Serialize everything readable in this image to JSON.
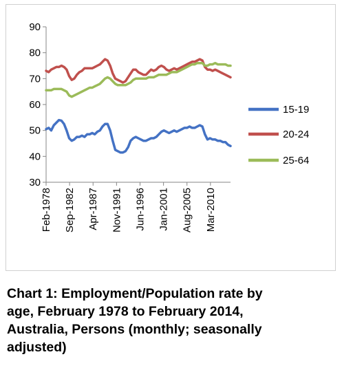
{
  "chart_data": {
    "type": "line",
    "title": "",
    "xlabel": "",
    "ylabel": "",
    "ylim": [
      30,
      90
    ],
    "yticks": [
      30,
      40,
      50,
      60,
      70,
      80,
      90
    ],
    "xlim": [
      "1978-02",
      "2014-02"
    ],
    "xtick_labels": [
      "Feb-1978",
      "Sep-1982",
      "Apr-1987",
      "Nov-1991",
      "Jun-1996",
      "Jan-2001",
      "Aug-2005",
      "Mar-2010"
    ],
    "xtick_dates": [
      "1978-02",
      "1982-09",
      "1987-04",
      "1991-11",
      "1996-06",
      "2001-01",
      "2005-08",
      "2010-03"
    ],
    "grid": false,
    "legend": "right",
    "series": [
      {
        "name": "15-19",
        "color": "#4472C4",
        "points": [
          [
            "1978-02",
            50.5
          ],
          [
            "1978-08",
            51.0
          ],
          [
            "1979-02",
            50.0
          ],
          [
            "1979-08",
            52.0
          ],
          [
            "1980-02",
            53.0
          ],
          [
            "1980-08",
            54.0
          ],
          [
            "1981-02",
            53.8
          ],
          [
            "1981-08",
            52.5
          ],
          [
            "1982-02",
            50.0
          ],
          [
            "1982-08",
            47.0
          ],
          [
            "1983-02",
            46.0
          ],
          [
            "1983-08",
            46.5
          ],
          [
            "1984-02",
            47.5
          ],
          [
            "1984-08",
            47.5
          ],
          [
            "1985-02",
            48.0
          ],
          [
            "1985-08",
            47.5
          ],
          [
            "1986-02",
            48.5
          ],
          [
            "1986-08",
            48.5
          ],
          [
            "1987-02",
            49.0
          ],
          [
            "1987-08",
            48.5
          ],
          [
            "1988-02",
            49.5
          ],
          [
            "1988-08",
            50.0
          ],
          [
            "1989-02",
            51.5
          ],
          [
            "1989-08",
            52.5
          ],
          [
            "1990-02",
            52.5
          ],
          [
            "1990-08",
            50.0
          ],
          [
            "1991-02",
            46.0
          ],
          [
            "1991-08",
            42.5
          ],
          [
            "1992-02",
            42.0
          ],
          [
            "1992-08",
            41.5
          ],
          [
            "1993-02",
            41.5
          ],
          [
            "1993-08",
            42.0
          ],
          [
            "1994-02",
            43.5
          ],
          [
            "1994-08",
            46.0
          ],
          [
            "1995-02",
            47.0
          ],
          [
            "1995-08",
            47.5
          ],
          [
            "1996-02",
            47.0
          ],
          [
            "1996-08",
            46.5
          ],
          [
            "1997-02",
            46.0
          ],
          [
            "1997-08",
            46.0
          ],
          [
            "1998-02",
            46.5
          ],
          [
            "1998-08",
            47.0
          ],
          [
            "1999-02",
            47.0
          ],
          [
            "1999-08",
            47.5
          ],
          [
            "2000-02",
            48.5
          ],
          [
            "2000-08",
            49.5
          ],
          [
            "2001-02",
            50.0
          ],
          [
            "2001-08",
            49.5
          ],
          [
            "2002-02",
            49.0
          ],
          [
            "2002-08",
            49.5
          ],
          [
            "2003-02",
            50.0
          ],
          [
            "2003-08",
            49.5
          ],
          [
            "2004-02",
            50.0
          ],
          [
            "2004-08",
            50.5
          ],
          [
            "2005-02",
            51.0
          ],
          [
            "2005-08",
            51.0
          ],
          [
            "2006-02",
            51.5
          ],
          [
            "2006-08",
            51.0
          ],
          [
            "2007-02",
            51.0
          ],
          [
            "2007-08",
            51.5
          ],
          [
            "2008-02",
            52.0
          ],
          [
            "2008-08",
            51.5
          ],
          [
            "2009-02",
            48.5
          ],
          [
            "2009-08",
            46.5
          ],
          [
            "2010-02",
            47.0
          ],
          [
            "2010-08",
            46.5
          ],
          [
            "2011-02",
            46.5
          ],
          [
            "2011-08",
            46.0
          ],
          [
            "2012-02",
            46.0
          ],
          [
            "2012-08",
            45.5
          ],
          [
            "2013-02",
            45.5
          ],
          [
            "2013-08",
            44.5
          ],
          [
            "2014-02",
            44.0
          ]
        ]
      },
      {
        "name": "20-24",
        "color": "#C0504D",
        "points": [
          [
            "1978-02",
            73.0
          ],
          [
            "1978-08",
            72.5
          ],
          [
            "1979-02",
            73.5
          ],
          [
            "1979-08",
            74.0
          ],
          [
            "1980-02",
            74.5
          ],
          [
            "1980-08",
            74.5
          ],
          [
            "1981-02",
            75.0
          ],
          [
            "1981-08",
            74.5
          ],
          [
            "1982-02",
            73.5
          ],
          [
            "1982-08",
            71.0
          ],
          [
            "1983-02",
            69.5
          ],
          [
            "1983-08",
            70.0
          ],
          [
            "1984-02",
            71.5
          ],
          [
            "1984-08",
            72.5
          ],
          [
            "1985-02",
            73.0
          ],
          [
            "1985-08",
            74.0
          ],
          [
            "1986-02",
            74.0
          ],
          [
            "1986-08",
            74.0
          ],
          [
            "1987-02",
            74.0
          ],
          [
            "1987-08",
            74.5
          ],
          [
            "1988-02",
            75.0
          ],
          [
            "1988-08",
            75.5
          ],
          [
            "1989-02",
            76.5
          ],
          [
            "1989-08",
            77.5
          ],
          [
            "1990-02",
            77.0
          ],
          [
            "1990-08",
            75.0
          ],
          [
            "1991-02",
            72.0
          ],
          [
            "1991-08",
            70.0
          ],
          [
            "1992-02",
            69.5
          ],
          [
            "1992-08",
            69.0
          ],
          [
            "1993-02",
            68.5
          ],
          [
            "1993-08",
            69.0
          ],
          [
            "1994-02",
            70.5
          ],
          [
            "1994-08",
            72.0
          ],
          [
            "1995-02",
            73.5
          ],
          [
            "1995-08",
            73.5
          ],
          [
            "1996-02",
            72.5
          ],
          [
            "1996-08",
            72.0
          ],
          [
            "1997-02",
            71.5
          ],
          [
            "1997-08",
            71.5
          ],
          [
            "1998-02",
            72.5
          ],
          [
            "1998-08",
            73.5
          ],
          [
            "1999-02",
            73.0
          ],
          [
            "1999-08",
            73.5
          ],
          [
            "2000-02",
            74.5
          ],
          [
            "2000-08",
            75.0
          ],
          [
            "2001-02",
            74.5
          ],
          [
            "2001-08",
            73.5
          ],
          [
            "2002-02",
            73.0
          ],
          [
            "2002-08",
            73.5
          ],
          [
            "2003-02",
            74.0
          ],
          [
            "2003-08",
            73.5
          ],
          [
            "2004-02",
            74.0
          ],
          [
            "2004-08",
            74.5
          ],
          [
            "2005-02",
            75.0
          ],
          [
            "2005-08",
            75.5
          ],
          [
            "2006-02",
            76.0
          ],
          [
            "2006-08",
            76.5
          ],
          [
            "2007-02",
            76.5
          ],
          [
            "2007-08",
            77.0
          ],
          [
            "2008-02",
            77.5
          ],
          [
            "2008-08",
            77.0
          ],
          [
            "2009-02",
            74.5
          ],
          [
            "2009-08",
            73.5
          ],
          [
            "2010-02",
            73.5
          ],
          [
            "2010-08",
            73.0
          ],
          [
            "2011-02",
            73.5
          ],
          [
            "2011-08",
            73.0
          ],
          [
            "2012-02",
            72.5
          ],
          [
            "2012-08",
            72.0
          ],
          [
            "2013-02",
            71.5
          ],
          [
            "2013-08",
            71.0
          ],
          [
            "2014-02",
            70.5
          ]
        ]
      },
      {
        "name": "25-64",
        "color": "#9BBB59",
        "points": [
          [
            "1978-02",
            65.5
          ],
          [
            "1978-08",
            65.5
          ],
          [
            "1979-02",
            65.5
          ],
          [
            "1979-08",
            66.0
          ],
          [
            "1980-02",
            66.0
          ],
          [
            "1980-08",
            66.0
          ],
          [
            "1981-02",
            66.0
          ],
          [
            "1981-08",
            65.5
          ],
          [
            "1982-02",
            65.0
          ],
          [
            "1982-08",
            63.5
          ],
          [
            "1983-02",
            63.0
          ],
          [
            "1983-08",
            63.5
          ],
          [
            "1984-02",
            64.0
          ],
          [
            "1984-08",
            64.5
          ],
          [
            "1985-02",
            65.0
          ],
          [
            "1985-08",
            65.5
          ],
          [
            "1986-02",
            66.0
          ],
          [
            "1986-08",
            66.5
          ],
          [
            "1987-02",
            66.5
          ],
          [
            "1987-08",
            67.0
          ],
          [
            "1988-02",
            67.5
          ],
          [
            "1988-08",
            68.0
          ],
          [
            "1989-02",
            69.0
          ],
          [
            "1989-08",
            70.0
          ],
          [
            "1990-02",
            70.5
          ],
          [
            "1990-08",
            70.0
          ],
          [
            "1991-02",
            69.0
          ],
          [
            "1991-08",
            68.0
          ],
          [
            "1992-02",
            67.5
          ],
          [
            "1992-08",
            67.5
          ],
          [
            "1993-02",
            67.5
          ],
          [
            "1993-08",
            67.5
          ],
          [
            "1994-02",
            68.0
          ],
          [
            "1994-08",
            68.5
          ],
          [
            "1995-02",
            69.5
          ],
          [
            "1995-08",
            70.0
          ],
          [
            "1996-02",
            70.0
          ],
          [
            "1996-08",
            70.0
          ],
          [
            "1997-02",
            70.0
          ],
          [
            "1997-08",
            70.0
          ],
          [
            "1998-02",
            70.5
          ],
          [
            "1998-08",
            70.5
          ],
          [
            "1999-02",
            70.5
          ],
          [
            "1999-08",
            71.0
          ],
          [
            "2000-02",
            71.5
          ],
          [
            "2000-08",
            71.5
          ],
          [
            "2001-02",
            71.5
          ],
          [
            "2001-08",
            71.5
          ],
          [
            "2002-02",
            72.0
          ],
          [
            "2002-08",
            72.5
          ],
          [
            "2003-02",
            72.5
          ],
          [
            "2003-08",
            72.5
          ],
          [
            "2004-02",
            73.0
          ],
          [
            "2004-08",
            73.5
          ],
          [
            "2005-02",
            74.0
          ],
          [
            "2005-08",
            74.5
          ],
          [
            "2006-02",
            75.0
          ],
          [
            "2006-08",
            75.5
          ],
          [
            "2007-02",
            75.5
          ],
          [
            "2007-08",
            76.0
          ],
          [
            "2008-02",
            76.0
          ],
          [
            "2008-08",
            76.0
          ],
          [
            "2009-02",
            75.0
          ],
          [
            "2009-08",
            75.0
          ],
          [
            "2010-02",
            75.5
          ],
          [
            "2010-08",
            75.5
          ],
          [
            "2011-02",
            76.0
          ],
          [
            "2011-08",
            75.5
          ],
          [
            "2012-02",
            75.5
          ],
          [
            "2012-08",
            75.5
          ],
          [
            "2013-02",
            75.5
          ],
          [
            "2013-08",
            75.0
          ],
          [
            "2014-02",
            75.0
          ]
        ]
      }
    ]
  },
  "caption": {
    "line1": "Chart 1: Employment/Population rate by",
    "line2": "age, February 1978 to February 2014,",
    "line3": "Australia, Persons (monthly; seasonally",
    "line4": "adjusted)"
  }
}
